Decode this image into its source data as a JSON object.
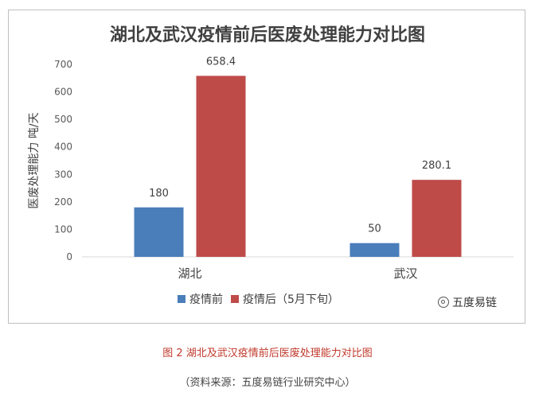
{
  "chart_data": {
    "type": "bar",
    "title": "湖北及武汉疫情前后医废处理能力对比图",
    "ylabel": "医废处理能力 吨/天",
    "xlabel": "",
    "categories": [
      "湖北",
      "武汉"
    ],
    "series": [
      {
        "name": "疫情前",
        "values": [
          180,
          50
        ],
        "labels": [
          "180",
          "50"
        ],
        "color": "#4a7ebb"
      },
      {
        "name": "疫情后（5月下旬）",
        "values": [
          658.4,
          280.1
        ],
        "labels": [
          "658.4",
          "280.1"
        ],
        "color": "#be4b48"
      }
    ],
    "ylim": [
      0,
      700
    ],
    "yticks": [
      "0",
      "100",
      "200",
      "300",
      "400",
      "500",
      "600",
      "700"
    ],
    "grid": false,
    "legend": "bottom"
  },
  "caption": {
    "figure": "图 2 湖北及武汉疫情前后医废处理能力对比图",
    "source": "（资料来源：五度易链行业研究中心）"
  },
  "watermark": {
    "icon": "wechat-icon",
    "text": "五度易链"
  }
}
